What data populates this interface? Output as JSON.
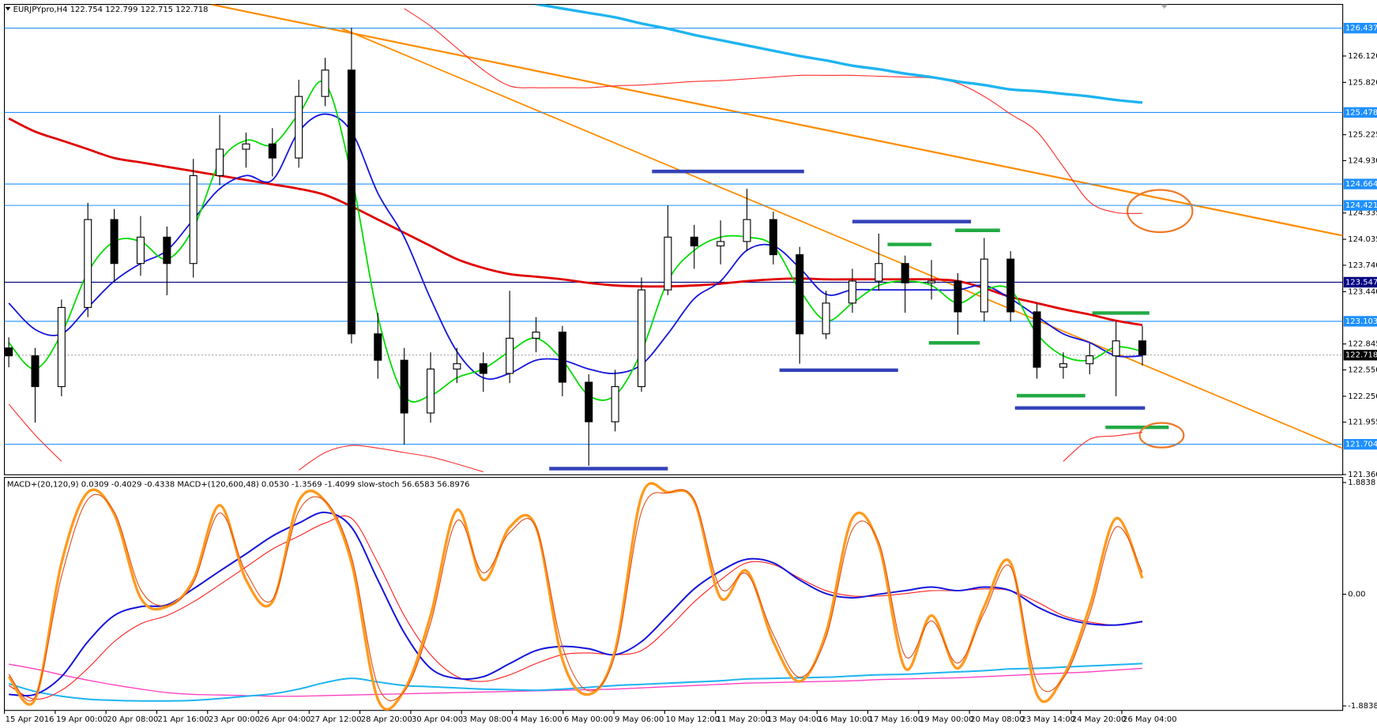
{
  "chart_data": [
    {
      "type": "candlestick",
      "title": "EURJPYpro,H4  122.754 122.799 122.715 122.718",
      "ylim": [
        121.357,
        126.707
      ],
      "yticks": [
        {
          "value": 126.12,
          "label": "126.120"
        },
        {
          "value": 125.82,
          "label": "125.820"
        },
        125.225,
        {
          "value": 124.93,
          "label": "124.930"
        },
        124.335,
        124.035,
        {
          "value": 123.74,
          "label": "123.740"
        },
        {
          "value": 123.44,
          "label": "123.440"
        },
        122.845,
        {
          "value": 122.55,
          "label": "122.550"
        },
        {
          "value": 122.25,
          "label": "122.250"
        },
        121.955,
        {
          "value": 121.36,
          "label": "121.360"
        }
      ],
      "x_labels": [
        "15 Apr 2016",
        "19 Apr 00:00",
        "20 Apr 08:00",
        "21 Apr 16:00",
        "23 Apr 00:00",
        "26 Apr 04:00",
        "27 Apr 12:00",
        "28 Apr 20:00",
        "30 Apr 04:00",
        "3 May 08:00",
        "4 May 16:00",
        "6 May 00:00",
        "9 May 06:00",
        "10 May 12:00",
        "11 May 20:00",
        "13 May 04:00",
        "16 May 10:00",
        "17 May 16:00",
        "19 May 00:00",
        "20 May 08:00",
        "23 May 14:00",
        "24 May 20:00",
        "26 May 04:00"
      ],
      "candles": [
        [
          122.8,
          122.92,
          122.58,
          122.71
        ],
        [
          122.71,
          122.8,
          121.95,
          122.36
        ],
        [
          122.36,
          123.35,
          122.25,
          123.26
        ],
        [
          123.26,
          124.45,
          123.15,
          124.26
        ],
        [
          124.26,
          124.38,
          123.55,
          123.76
        ],
        [
          123.76,
          124.3,
          123.62,
          124.06
        ],
        [
          124.06,
          124.18,
          123.4,
          123.76
        ],
        [
          123.76,
          124.95,
          123.6,
          124.76
        ],
        [
          124.76,
          125.45,
          124.65,
          125.06
        ],
        [
          125.06,
          125.25,
          124.85,
          125.12
        ],
        [
          125.12,
          125.3,
          124.75,
          124.96
        ],
        [
          124.96,
          125.85,
          124.85,
          125.66
        ],
        [
          125.66,
          126.1,
          125.55,
          125.96
        ],
        [
          125.96,
          126.44,
          122.85,
          122.96
        ],
        [
          122.96,
          123.2,
          122.45,
          122.66
        ],
        [
          122.66,
          122.8,
          121.7,
          122.06
        ],
        [
          122.06,
          122.75,
          121.95,
          122.56
        ],
        [
          122.56,
          122.8,
          122.4,
          122.62
        ],
        [
          122.62,
          122.75,
          122.3,
          122.51
        ],
        [
          122.51,
          123.45,
          122.4,
          122.91
        ],
        [
          122.91,
          123.15,
          122.75,
          122.98
        ],
        [
          122.98,
          123.05,
          122.25,
          122.41
        ],
        [
          122.41,
          122.5,
          121.46,
          121.96
        ],
        [
          121.96,
          122.55,
          121.85,
          122.36
        ],
        [
          122.36,
          123.6,
          122.3,
          123.46
        ],
        [
          123.46,
          124.42,
          123.4,
          124.06
        ],
        [
          124.06,
          124.2,
          123.7,
          123.96
        ],
        [
          123.96,
          124.25,
          123.75,
          124.01
        ],
        [
          124.01,
          124.61,
          123.9,
          124.26
        ],
        [
          124.26,
          124.35,
          123.75,
          123.86
        ],
        [
          123.86,
          123.95,
          122.62,
          122.96
        ],
        [
          122.96,
          123.45,
          122.9,
          123.31
        ],
        [
          123.31,
          123.7,
          123.2,
          123.56
        ],
        [
          123.56,
          124.1,
          123.45,
          123.76
        ],
        [
          123.76,
          123.85,
          123.2,
          123.54
        ],
        [
          123.54,
          123.8,
          123.35,
          123.56
        ],
        [
          123.56,
          123.65,
          122.95,
          123.21
        ],
        [
          123.21,
          124.05,
          123.1,
          123.81
        ],
        [
          123.81,
          123.9,
          123.1,
          123.21
        ],
        [
          123.21,
          123.3,
          122.45,
          122.58
        ],
        [
          122.58,
          122.75,
          122.45,
          122.62
        ],
        [
          122.62,
          122.85,
          122.5,
          122.71
        ],
        [
          122.71,
          123.1,
          122.25,
          122.88
        ],
        [
          122.88,
          123.05,
          122.6,
          122.72
        ]
      ],
      "series": [
        {
          "color": "#ff3030",
          "values": [
            null,
            null,
            null,
            null,
            null,
            null,
            null,
            null,
            null,
            null,
            null,
            null,
            null,
            null,
            null,
            126.66,
            126.46,
            126.21,
            125.96,
            125.78,
            125.76,
            125.76,
            125.76,
            125.78,
            125.79,
            125.81,
            125.83,
            125.84,
            125.86,
            125.88,
            125.9,
            125.9,
            125.9,
            125.89,
            125.88,
            125.87,
            125.81,
            125.66,
            125.46,
            125.26,
            124.86,
            124.46,
            124.34,
            124.33
          ]
        },
        {
          "color": "#ff3030",
          "values": [
            122.16,
            121.81,
            121.51,
            null,
            null,
            null,
            null,
            null,
            null,
            null,
            null,
            121.41,
            121.61,
            121.69,
            121.66,
            121.61,
            121.56,
            121.48,
            121.39,
            null,
            null,
            null,
            null,
            null,
            null,
            null,
            null,
            null,
            null,
            null,
            null,
            null,
            null,
            null,
            null,
            null,
            null,
            null,
            null,
            null,
            121.51,
            121.76,
            121.8,
            121.84
          ]
        },
        {
          "color": "#1eb4f0",
          "values": [
            null,
            null,
            null,
            null,
            null,
            null,
            null,
            null,
            null,
            null,
            null,
            null,
            null,
            null,
            null,
            null,
            null,
            null,
            null,
            null,
            126.71,
            126.66,
            126.61,
            126.56,
            126.49,
            126.43,
            126.36,
            126.3,
            126.24,
            126.18,
            126.12,
            126.07,
            126.01,
            125.97,
            125.92,
            125.88,
            125.83,
            125.79,
            125.74,
            125.72,
            125.69,
            125.66,
            125.62,
            125.59
          ]
        },
        {
          "color": "#e00000",
          "values": [
            125.41,
            125.26,
            125.16,
            125.06,
            124.96,
            124.91,
            124.86,
            124.81,
            124.76,
            124.71,
            124.66,
            124.61,
            124.54,
            124.41,
            124.26,
            124.11,
            123.96,
            123.81,
            123.71,
            123.64,
            123.61,
            123.58,
            123.54,
            123.51,
            123.5,
            123.5,
            123.51,
            123.53,
            123.56,
            123.58,
            123.59,
            123.58,
            123.58,
            123.58,
            123.58,
            123.58,
            123.56,
            123.48,
            123.38,
            123.31,
            123.24,
            123.18,
            123.11,
            123.06
          ]
        },
        {
          "color": "#1414dc",
          "values": [
            123.31,
            123.01,
            122.96,
            123.26,
            123.56,
            123.76,
            123.91,
            124.26,
            124.61,
            124.76,
            124.71,
            125.26,
            125.46,
            125.26,
            124.56,
            124.06,
            123.36,
            122.76,
            122.46,
            122.51,
            122.66,
            122.66,
            122.56,
            122.51,
            122.61,
            122.96,
            123.36,
            123.56,
            123.91,
            123.96,
            123.71,
            123.41,
            123.46,
            123.46,
            123.46,
            123.46,
            123.46,
            123.51,
            123.36,
            123.16,
            122.96,
            122.86,
            122.71,
            122.71
          ]
        },
        {
          "color": "#00dc00",
          "values": [
            122.86,
            122.56,
            122.96,
            123.66,
            124.01,
            124.01,
            123.81,
            124.16,
            124.91,
            125.16,
            125.11,
            125.46,
            125.81,
            124.76,
            123.16,
            122.26,
            122.26,
            122.46,
            122.56,
            122.76,
            122.91,
            122.66,
            122.26,
            122.26,
            122.76,
            123.56,
            123.91,
            124.06,
            124.06,
            123.96,
            123.46,
            123.11,
            123.31,
            123.51,
            123.56,
            123.51,
            123.31,
            123.46,
            123.46,
            122.96,
            122.71,
            122.66,
            122.81,
            122.76
          ]
        }
      ],
      "levels": [
        {
          "value": 126.437,
          "color": "#1e90ff",
          "line": "solid"
        },
        {
          "value": 125.478,
          "color": "#1e90ff",
          "line": "solid"
        },
        {
          "value": 124.664,
          "color": "#1e90ff",
          "line": "solid"
        },
        {
          "value": 124.421,
          "color": "#1e90ff",
          "line": "solid"
        },
        {
          "value": 123.547,
          "color": "#000080",
          "line": "solid"
        },
        {
          "value": 123.103,
          "color": "#1e90ff",
          "line": "solid"
        },
        {
          "value": 122.718,
          "color": "#000000",
          "line": "dotted"
        },
        {
          "value": 121.704,
          "color": "#1e90ff",
          "line": "solid"
        }
      ]
    },
    {
      "type": "line",
      "title": "MACD+(20,120,9) 0.0309 -0.4029 -0.4338  MACD+(120,600,48) 0.0530 -1.3569 -1.4099  slow-stoch 56.6583 56.8976",
      "ylim": [
        -1.96,
        1.97
      ],
      "yticks": [
        1.8838,
        {
          "value": 0,
          "label": "0.00"
        },
        -1.8838
      ],
      "series": [
        {
          "color": "#ff40c0",
          "values": [
            -1.18,
            -1.26,
            -1.36,
            -1.45,
            -1.53,
            -1.6,
            -1.66,
            -1.69,
            -1.7,
            -1.71,
            -1.72,
            -1.72,
            -1.71,
            -1.7,
            -1.69,
            -1.68,
            -1.67,
            -1.66,
            -1.65,
            -1.64,
            -1.63,
            -1.62,
            -1.61,
            -1.6,
            -1.58,
            -1.56,
            -1.54,
            -1.52,
            -1.5,
            -1.49,
            -1.48,
            -1.47,
            -1.46,
            -1.44,
            -1.43,
            -1.42,
            -1.41,
            -1.39,
            -1.37,
            -1.35,
            -1.33,
            -1.31,
            -1.28,
            -1.25
          ]
        },
        {
          "color": "#1eb4f0",
          "values": [
            -1.51,
            -1.64,
            -1.72,
            -1.77,
            -1.79,
            -1.8,
            -1.8,
            -1.79,
            -1.76,
            -1.72,
            -1.68,
            -1.6,
            -1.49,
            -1.42,
            -1.48,
            -1.54,
            -1.56,
            -1.58,
            -1.6,
            -1.61,
            -1.62,
            -1.6,
            -1.57,
            -1.54,
            -1.52,
            -1.5,
            -1.48,
            -1.46,
            -1.43,
            -1.42,
            -1.41,
            -1.4,
            -1.38,
            -1.36,
            -1.35,
            -1.33,
            -1.31,
            -1.29,
            -1.26,
            -1.25,
            -1.23,
            -1.21,
            -1.19,
            -1.17
          ]
        },
        {
          "color": "#ff2020",
          "values": [
            -1.54,
            -1.77,
            -1.62,
            -1.25,
            -0.8,
            -0.5,
            -0.36,
            -0.13,
            0.16,
            0.46,
            0.76,
            0.98,
            1.2,
            1.28,
            0.53,
            -0.36,
            -1.02,
            -1.39,
            -1.47,
            -1.36,
            -1.17,
            -1.02,
            -0.99,
            -1.02,
            -0.95,
            -0.58,
            -0.13,
            0.24,
            0.53,
            0.5,
            0.27,
            0.06,
            -0.03,
            -0.03,
            0.01,
            0.06,
            0.06,
            0.09,
            0.06,
            -0.13,
            -0.36,
            -0.47,
            -0.52,
            -0.47
          ]
        },
        {
          "color": "#1414dc",
          "values": [
            -1.69,
            -1.69,
            -1.39,
            -0.8,
            -0.36,
            -0.21,
            -0.18,
            0.09,
            0.39,
            0.68,
            0.98,
            1.2,
            1.38,
            1.13,
            0.24,
            -0.65,
            -1.25,
            -1.42,
            -1.39,
            -1.17,
            -0.95,
            -0.88,
            -0.92,
            -1.02,
            -0.8,
            -0.36,
            0.09,
            0.39,
            0.59,
            0.53,
            0.24,
            0.01,
            -0.06,
            0.0,
            0.06,
            0.12,
            0.06,
            0.12,
            0.06,
            -0.21,
            -0.4,
            -0.5,
            -0.52,
            -0.46
          ]
        },
        {
          "color": "#ff9a1e",
          "values": [
            -1.39,
            -1.77,
            0.53,
            1.72,
            1.35,
            -0.06,
            -0.21,
            0.24,
            1.5,
            0.24,
            -0.13,
            1.57,
            1.57,
            0.53,
            -1.77,
            -1.62,
            -0.36,
            1.42,
            0.24,
            1.13,
            1.13,
            -1.1,
            -1.69,
            -0.95,
            1.65,
            1.72,
            1.57,
            -0.06,
            0.39,
            -0.8,
            -1.47,
            -0.65,
            1.28,
            0.83,
            -1.25,
            -0.36,
            -1.25,
            -0.21,
            0.53,
            -1.69,
            -1.39,
            -0.21,
            1.28,
            0.27
          ]
        },
        {
          "color": "#e0501a",
          "values": [
            -1.35,
            -1.73,
            0.3,
            1.6,
            1.39,
            0.08,
            -0.19,
            0.19,
            1.37,
            0.37,
            -0.09,
            1.4,
            1.57,
            0.63,
            -1.54,
            -1.64,
            -0.49,
            1.24,
            0.36,
            1.04,
            1.13,
            -0.88,
            -1.63,
            -1.02,
            1.39,
            1.71,
            1.59,
            0.1,
            0.34,
            -0.68,
            -1.4,
            -0.73,
            1.09,
            0.88,
            -1.04,
            -0.45,
            -1.16,
            -0.31,
            0.46,
            -1.47,
            -1.42,
            -0.33,
            1.13,
            0.37
          ]
        }
      ]
    }
  ]
}
